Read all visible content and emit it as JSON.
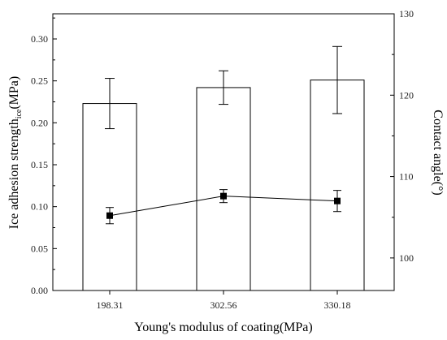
{
  "chart_data": {
    "type": "bar",
    "categories": [
      "198.31",
      "302.56",
      "330.18"
    ],
    "xlabel": "Young's modulus of coating(MPa)",
    "ylabel": {
      "main": "Ice adhesion strength",
      "sub": "ice",
      "unit": "(MPa)"
    },
    "y2label": "Contact angle(°)",
    "ylim": [
      0,
      0.33
    ],
    "y2lim": [
      96,
      130
    ],
    "yticks": [
      "0.00",
      "0.05",
      "0.10",
      "0.15",
      "0.20",
      "0.25",
      "0.30"
    ],
    "y2ticks": [
      "100",
      "110",
      "120",
      "130"
    ],
    "grid": false,
    "series": [
      {
        "kind": "bar",
        "axis": "left",
        "values": [
          0.223,
          0.242,
          0.251
        ],
        "errors": [
          0.03,
          0.02,
          0.04
        ]
      },
      {
        "kind": "line-marker",
        "axis": "right",
        "values": [
          105.2,
          107.6,
          107.0
        ],
        "errors": [
          1.0,
          0.8,
          1.3
        ]
      }
    ]
  }
}
